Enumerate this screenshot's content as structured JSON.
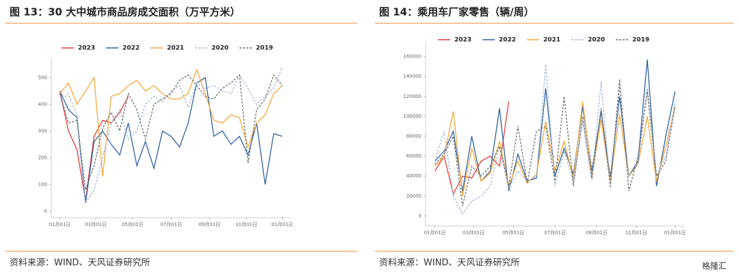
{
  "watermark": "格隆汇",
  "chart_data": [
    {
      "type": "line",
      "title": "图 13：30 大中城市商品房成交面积（万平方米）",
      "source": "资料来源：WIND、天风证券研究所",
      "legend": "top",
      "x": [
        0,
        2,
        4,
        6,
        8,
        10,
        12,
        14,
        16,
        18,
        20,
        22,
        24,
        26,
        28,
        30,
        32,
        34,
        36,
        38,
        40,
        42,
        44,
        46,
        48,
        50,
        52
      ],
      "xlim": [
        -2,
        54
      ],
      "xticks": [
        {
          "value": 0,
          "label": "01月01日"
        },
        {
          "value": 8.4,
          "label": "03月01日"
        },
        {
          "value": 17,
          "label": "05月01日"
        },
        {
          "value": 26,
          "label": "07月01日"
        },
        {
          "value": 35,
          "label": "09月01日"
        },
        {
          "value": 43.6,
          "label": "11月01日"
        },
        {
          "value": 52,
          "label": "01月01日"
        }
      ],
      "ylim": [
        -25,
        560
      ],
      "yticks": [
        0,
        100,
        200,
        300,
        400,
        500
      ],
      "series": [
        {
          "name": "2023",
          "color": "#e23b3b",
          "dash": false,
          "values": [
            450,
            300,
            230,
            40,
            280,
            340,
            330,
            370,
            430,
            null,
            null,
            null,
            null,
            null,
            null,
            null,
            null,
            null,
            null,
            null,
            null,
            null,
            null,
            null,
            null,
            null,
            null
          ]
        },
        {
          "name": "2022",
          "color": "#2e5fa0",
          "dash": false,
          "values": [
            450,
            380,
            350,
            30,
            260,
            300,
            250,
            210,
            330,
            170,
            260,
            160,
            300,
            280,
            240,
            330,
            480,
            500,
            280,
            300,
            250,
            280,
            210,
            330,
            100,
            290,
            280
          ]
        },
        {
          "name": "2021",
          "color": "#f2a93b",
          "dash": false,
          "values": [
            440,
            480,
            400,
            450,
            500,
            130,
            430,
            440,
            470,
            490,
            450,
            470,
            440,
            420,
            420,
            440,
            530,
            440,
            340,
            330,
            360,
            350,
            240,
            330,
            360,
            440,
            470
          ]
        },
        {
          "name": "2020",
          "color": "#a3b6d8",
          "dash": true,
          "values": [
            410,
            440,
            360,
            30,
            80,
            200,
            330,
            380,
            270,
            300,
            400,
            430,
            410,
            450,
            470,
            390,
            480,
            460,
            470,
            450,
            440,
            510,
            460,
            400,
            430,
            460,
            540
          ]
        },
        {
          "name": "2019",
          "color": "#6b6b6b",
          "dash": true,
          "values": [
            440,
            330,
            340,
            80,
            170,
            310,
            370,
            300,
            440,
            380,
            270,
            400,
            420,
            440,
            490,
            510,
            470,
            430,
            420,
            460,
            480,
            510,
            180,
            380,
            420,
            510,
            470
          ]
        }
      ]
    },
    {
      "type": "line",
      "title": "图 14：乘用车厂家零售（辆/周）",
      "source": "资料来源：WIND、天风证券研究所",
      "legend": "top",
      "x": [
        0,
        2,
        4,
        6,
        8,
        10,
        12,
        14,
        16,
        18,
        20,
        22,
        24,
        26,
        28,
        30,
        32,
        34,
        36,
        38,
        40,
        42,
        44,
        46,
        48,
        50,
        52
      ],
      "xlim": [
        -2,
        54
      ],
      "xticks": [
        {
          "value": 0,
          "label": "01月01日"
        },
        {
          "value": 8.4,
          "label": "03月01日"
        },
        {
          "value": 17,
          "label": "05月01日"
        },
        {
          "value": 26,
          "label": "07月01日"
        },
        {
          "value": 35,
          "label": "09月01日"
        },
        {
          "value": 43.6,
          "label": "11月01日"
        },
        {
          "value": 52,
          "label": "01月01日"
        }
      ],
      "ylim": [
        -10000,
        170000
      ],
      "yticks": [
        0,
        20000,
        40000,
        60000,
        80000,
        100000,
        120000,
        140000,
        160000
      ],
      "series": [
        {
          "name": "2023",
          "color": "#e23b3b",
          "dash": false,
          "values": [
            45000,
            60000,
            22000,
            40000,
            38000,
            55000,
            60000,
            50000,
            115000,
            null,
            null,
            null,
            null,
            null,
            null,
            null,
            null,
            null,
            null,
            null,
            null,
            null,
            null,
            null,
            null,
            null,
            null
          ]
        },
        {
          "name": "2022",
          "color": "#2e5fa0",
          "dash": false,
          "values": [
            55000,
            65000,
            85000,
            25000,
            80000,
            35000,
            45000,
            108000,
            25000,
            62000,
            35000,
            38000,
            128000,
            40000,
            68000,
            42000,
            110000,
            45000,
            105000,
            38000,
            120000,
            40000,
            55000,
            157000,
            30000,
            80000,
            125000
          ]
        },
        {
          "name": "2021",
          "color": "#f2a93b",
          "dash": false,
          "values": [
            50000,
            60000,
            105000,
            20000,
            68000,
            35000,
            43000,
            75000,
            30000,
            55000,
            33000,
            42000,
            95000,
            45000,
            75000,
            38000,
            115000,
            40000,
            97000,
            35000,
            102000,
            40000,
            52000,
            100000,
            35000,
            70000,
            110000
          ]
        },
        {
          "name": "2020",
          "color": "#a3b6d8",
          "dash": true,
          "values": [
            55000,
            85000,
            20000,
            2000,
            15000,
            20000,
            30000,
            70000,
            28000,
            45000,
            35000,
            40000,
            152000,
            30000,
            65000,
            35000,
            95000,
            35000,
            135000,
            28000,
            130000,
            40000,
            52000,
            130000,
            40000,
            60000,
            115000
          ]
        },
        {
          "name": "2019",
          "color": "#6b6b6b",
          "dash": true,
          "values": [
            52000,
            62000,
            80000,
            10000,
            50000,
            40000,
            50000,
            70000,
            30000,
            90000,
            33000,
            85000,
            90000,
            35000,
            120000,
            30000,
            100000,
            38000,
            108000,
            30000,
            137000,
            25000,
            60000,
            125000,
            40000,
            55000,
            110000
          ]
        }
      ]
    }
  ]
}
